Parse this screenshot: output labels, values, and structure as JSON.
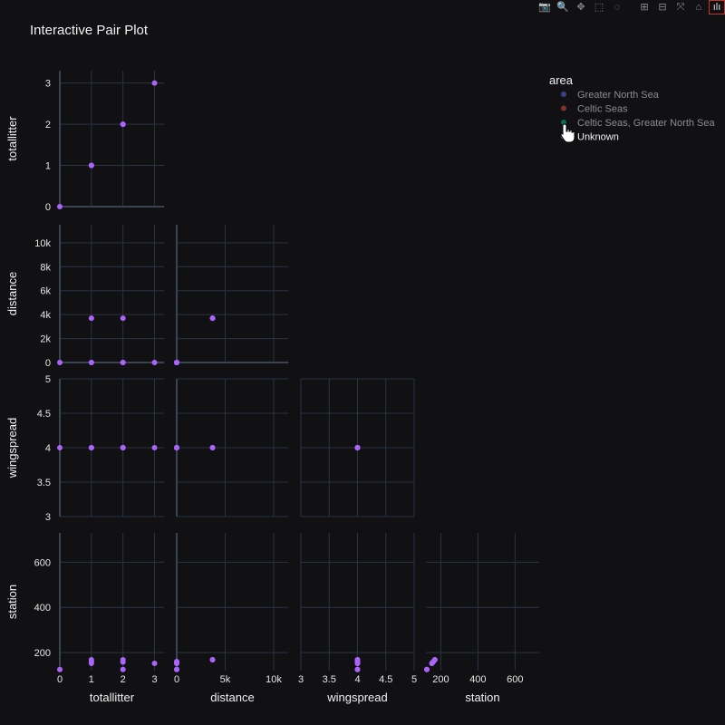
{
  "title": "Interactive Pair Plot",
  "modebar": [
    {
      "name": "camera-icon",
      "glyph": "📷"
    },
    {
      "name": "zoom-icon",
      "glyph": "🔍"
    },
    {
      "name": "pan-icon",
      "glyph": "✥"
    },
    {
      "name": "box-select-icon",
      "glyph": "⬚"
    },
    {
      "name": "lasso-icon",
      "glyph": "◌"
    },
    {
      "name": "zoom-in-icon",
      "glyph": "⊞"
    },
    {
      "name": "zoom-out-icon",
      "glyph": "⊟"
    },
    {
      "name": "autoscale-icon",
      "glyph": "⤧"
    },
    {
      "name": "home-icon",
      "glyph": "⌂"
    },
    {
      "name": "plotly-logo-icon",
      "glyph": "ılı"
    }
  ],
  "chart_data": {
    "type": "scatter",
    "title": "Interactive Pair Plot",
    "dimensions": [
      "totallitter",
      "distance",
      "wingspread",
      "station"
    ],
    "axes": {
      "totallitter": {
        "range": [
          0,
          3.3
        ],
        "ticks": [
          0,
          1,
          2,
          3
        ],
        "ticklabels": [
          "0",
          "1",
          "2",
          "3"
        ]
      },
      "distance": {
        "range": [
          0,
          11500
        ],
        "ticks": [
          0,
          2000,
          4000,
          6000,
          8000,
          10000
        ],
        "ticklabels": [
          "0",
          "2k",
          "4k",
          "6k",
          "8k",
          "10k"
        ],
        "xticks": [
          5000,
          10000
        ],
        "xticklabels": [
          "5k",
          "10k"
        ]
      },
      "wingspread": {
        "range": [
          3,
          5
        ],
        "ticks": [
          3,
          3.5,
          4,
          4.5,
          5
        ],
        "ticklabels": [
          "3",
          "3.5",
          "4",
          "4.5",
          "5"
        ]
      },
      "station": {
        "range": [
          120,
          730
        ],
        "ticks": [
          200,
          400,
          600
        ],
        "ticklabels": [
          "200",
          "400",
          "600"
        ]
      }
    },
    "points": [
      {
        "totallitter": 0,
        "distance": 0,
        "wingspread": 4,
        "station": 125
      },
      {
        "totallitter": 1,
        "distance": 3700,
        "wingspread": 4,
        "station": 168
      },
      {
        "totallitter": 1,
        "distance": 0,
        "wingspread": 4,
        "station": 160
      },
      {
        "totallitter": 1,
        "distance": 0,
        "wingspread": 4,
        "station": 152
      },
      {
        "totallitter": 2,
        "distance": 3700,
        "wingspread": 4,
        "station": 168
      },
      {
        "totallitter": 2,
        "distance": 0,
        "wingspread": 4,
        "station": 158
      },
      {
        "totallitter": 2,
        "distance": 0,
        "wingspread": 4,
        "station": 125
      },
      {
        "totallitter": 3,
        "distance": 0,
        "wingspread": 4,
        "station": 152
      }
    ],
    "legend": {
      "title": "area",
      "placement": "top-right",
      "entries": [
        {
          "name": "Greater North Sea",
          "color": "#636efa",
          "hidden": true
        },
        {
          "name": "Celtic Seas",
          "color": "#ef553b",
          "hidden": true
        },
        {
          "name": "Celtic Seas, Greater North Sea",
          "color": "#00cc96",
          "hidden": true
        },
        {
          "name": "Unknown",
          "color": "#ab63fa",
          "hidden": false
        }
      ]
    },
    "colors": {
      "background": "#111114",
      "grid": "#283442",
      "marker": "#ab63fa",
      "axisline": "#3a4450"
    }
  }
}
